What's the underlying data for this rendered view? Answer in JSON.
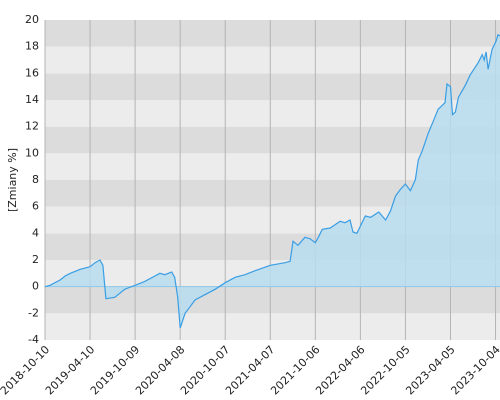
{
  "chart_data": {
    "type": "area",
    "y_label": "[Zmiany %]",
    "x": [
      "2018-10-10",
      "2018-10-30",
      "2018-12-10",
      "2018-12-30",
      "2019-01-20",
      "2019-03-01",
      "2019-04-10",
      "2019-04-30",
      "2019-05-20",
      "2019-06-01",
      "2019-06-13",
      "2019-07-19",
      "2019-08-28",
      "2019-10-09",
      "2019-11-18",
      "2019-12-28",
      "2020-01-17",
      "2020-02-06",
      "2020-03-05",
      "2020-03-17",
      "2020-03-29",
      "2020-04-08",
      "2020-04-28",
      "2020-05-18",
      "2020-06-07",
      "2020-07-17",
      "2020-08-27",
      "2020-10-07",
      "2020-11-16",
      "2020-12-26",
      "2021-02-05",
      "2021-04-07",
      "2021-06-06",
      "2021-06-26",
      "2021-07-08",
      "2021-07-28",
      "2021-08-25",
      "2021-09-14",
      "2021-10-06",
      "2021-10-18",
      "2021-11-03",
      "2021-12-05",
      "2022-01-14",
      "2022-02-03",
      "2022-02-23",
      "2022-03-07",
      "2022-03-23",
      "2022-04-26",
      "2022-05-18",
      "2022-06-19",
      "2022-07-17",
      "2022-08-06",
      "2022-08-26",
      "2022-09-15",
      "2022-10-05",
      "2022-10-25",
      "2022-11-14",
      "2022-11-26",
      "2022-12-12",
      "2023-01-05",
      "2023-01-25",
      "2023-02-14",
      "2023-03-14",
      "2023-03-22",
      "2023-04-05",
      "2023-04-13",
      "2023-04-25",
      "2023-05-07",
      "2023-06-04",
      "2023-06-24",
      "2023-07-26",
      "2023-08-11",
      "2023-08-19",
      "2023-08-27",
      "2023-09-04",
      "2023-09-20",
      "2023-10-06",
      "2023-10-14",
      "2023-10-22"
    ],
    "series": [
      {
        "color": "#3a9ee4",
        "fill": "#b7dcef",
        "values": [
          0,
          0.1,
          0.5,
          0.8,
          1.0,
          1.3,
          1.5,
          1.8,
          2.0,
          1.6,
          -0.9,
          -0.8,
          -0.2,
          0.1,
          0.4,
          0.8,
          1.0,
          0.9,
          1.1,
          0.7,
          -0.8,
          -3.1,
          -2.0,
          -1.5,
          -1.0,
          -0.6,
          -0.2,
          0.3,
          0.7,
          0.9,
          1.2,
          1.6,
          1.8,
          1.9,
          3.4,
          3.1,
          3.7,
          3.6,
          3.3,
          3.7,
          4.3,
          4.4,
          4.9,
          4.8,
          5.0,
          4.1,
          4.0,
          5.3,
          5.2,
          5.6,
          5.0,
          5.7,
          6.8,
          7.3,
          7.7,
          7.2,
          8.0,
          9.5,
          10.2,
          11.5,
          12.4,
          13.3,
          13.8,
          15.2,
          15.0,
          12.9,
          13.1,
          14.2,
          15.1,
          15.9,
          16.8,
          17.4,
          17.0,
          17.6,
          16.3,
          17.8,
          18.4,
          18.9,
          18.8
        ]
      }
    ],
    "xlim": [
      "2018-10-10",
      "2023-10-22"
    ],
    "xticks": [
      "2018-10-10",
      "2019-04-10",
      "2019-10-09",
      "2020-04-08",
      "2020-10-07",
      "2021-04-07",
      "2021-10-06",
      "2022-04-06",
      "2022-10-05",
      "2023-04-05",
      "2023-10-04"
    ],
    "ylim": [
      -4,
      20
    ],
    "yticks": [
      -4,
      -2,
      0,
      2,
      4,
      6,
      8,
      10,
      12,
      14,
      16,
      18,
      20
    ],
    "band_colors": [
      "#ececec",
      "#dcdcdc"
    ],
    "grid": true
  }
}
